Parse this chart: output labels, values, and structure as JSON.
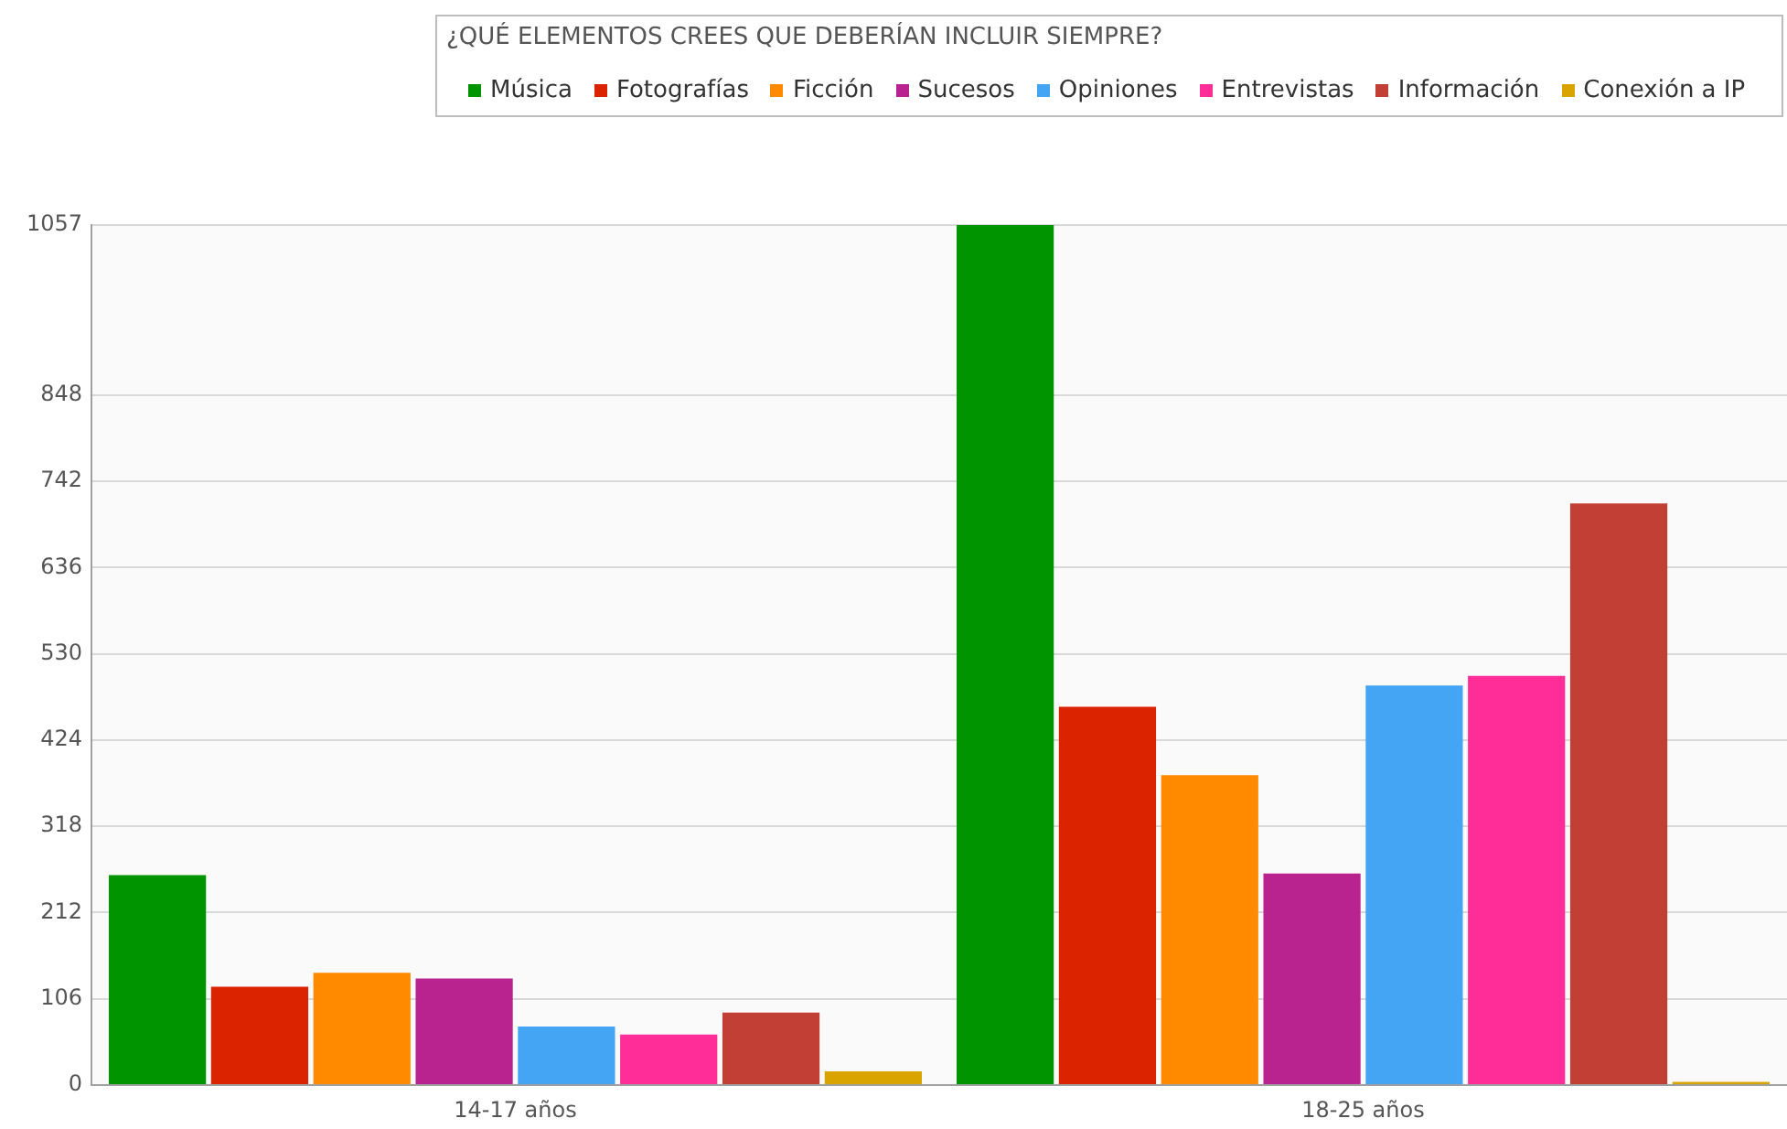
{
  "chart_data": {
    "type": "bar",
    "legend_title": "¿QUÉ ELEMENTOS CREES QUE DEBERÍAN INCLUIR SIEMPRE?",
    "categories": [
      "14-17 años",
      "18-25 años"
    ],
    "series": [
      {
        "name": "Música",
        "color": "#009400",
        "values": [
          258,
          1057
        ]
      },
      {
        "name": "Fotografías",
        "color": "#dc2300",
        "values": [
          121,
          465
        ]
      },
      {
        "name": "Ficción",
        "color": "#ff8a00",
        "values": [
          138,
          381
        ]
      },
      {
        "name": "Sucesos",
        "color": "#b8238f",
        "values": [
          131,
          260
        ]
      },
      {
        "name": "Opiniones",
        "color": "#45a5f5",
        "values": [
          72,
          491
        ]
      },
      {
        "name": "Entrevistas",
        "color": "#ff2d98",
        "values": [
          62,
          503
        ]
      },
      {
        "name": "Información",
        "color": "#c23f36",
        "values": [
          89,
          715
        ]
      },
      {
        "name": "Conexión a IP",
        "color": "#d9a400",
        "values": [
          17,
          4
        ]
      }
    ],
    "ylim": [
      0,
      1057
    ],
    "yticks": [
      0,
      106,
      212,
      318,
      424,
      530,
      636,
      742,
      848,
      1057
    ],
    "grid": "y",
    "legend": "top right"
  }
}
